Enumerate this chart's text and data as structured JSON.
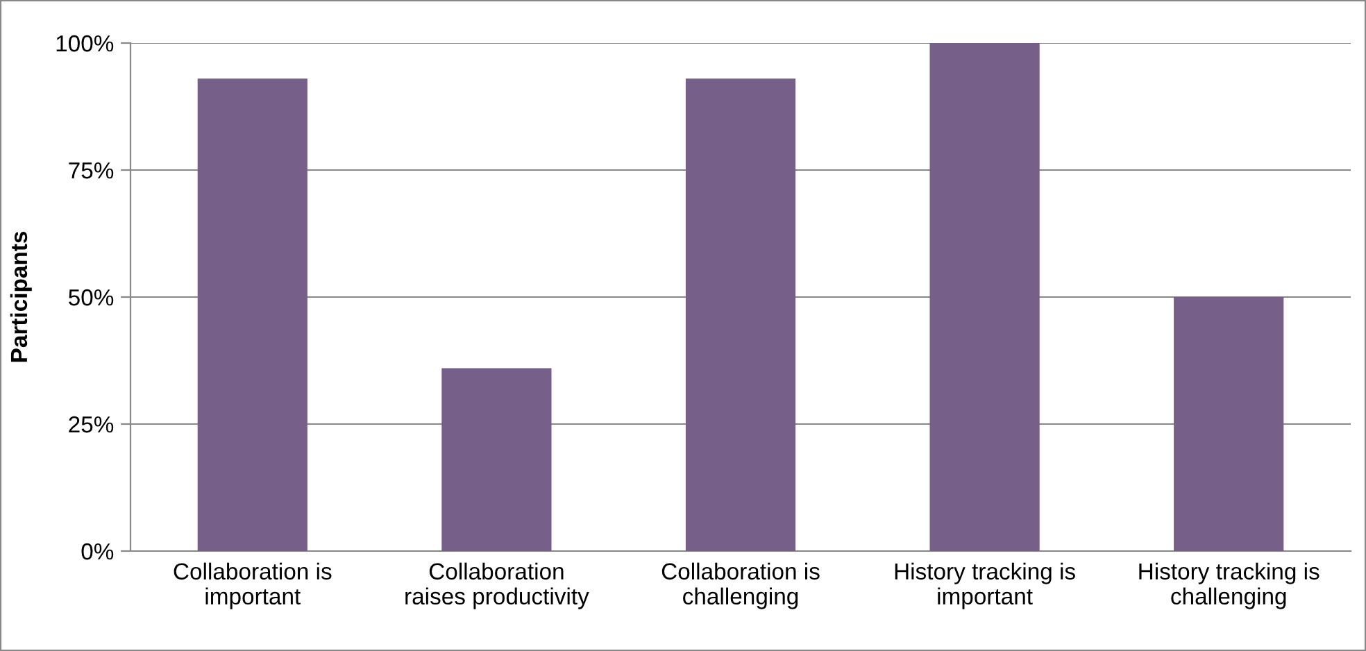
{
  "chart_data": {
    "type": "bar",
    "ylabel": "Participants",
    "categories": [
      "Collaboration is important",
      "Collaboration raises productivity",
      "Collaboration is challenging",
      "History tracking is important",
      "History tracking is challenging"
    ],
    "values": [
      93,
      36,
      93,
      100,
      50
    ],
    "color": "#76608a",
    "ylim": [
      0,
      100
    ],
    "yticks": [
      {
        "value": 0,
        "label": "0%"
      },
      {
        "value": 25,
        "label": "25%"
      },
      {
        "value": 50,
        "label": "50%"
      },
      {
        "value": 75,
        "label": "75%"
      },
      {
        "value": 100,
        "label": "100%"
      }
    ],
    "grid": "y"
  }
}
